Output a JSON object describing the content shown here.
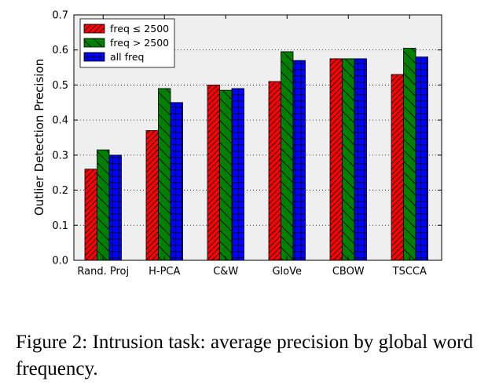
{
  "chart_data": {
    "type": "bar",
    "ylabel": "Outlier Detection Precision",
    "xlabel": "",
    "ylim": [
      0.0,
      0.7
    ],
    "yticks": [
      "0.0",
      "0.1",
      "0.2",
      "0.3",
      "0.4",
      "0.5",
      "0.6",
      "0.7"
    ],
    "grid": "horizontal dotted",
    "legend_position": "top-left",
    "categories": [
      "Rand. Proj",
      "H-PCA",
      "C&W",
      "GloVe",
      "CBOW",
      "TSCCA"
    ],
    "series": [
      {
        "name": "freq ≤ 2500",
        "color": "#ff0000",
        "hatch": "diagonal",
        "values": [
          0.26,
          0.37,
          0.5,
          0.51,
          0.575,
          0.53
        ]
      },
      {
        "name": "freq > 2500",
        "color": "#008000",
        "hatch": "backslash",
        "values": [
          0.315,
          0.49,
          0.485,
          0.595,
          0.575,
          0.605
        ]
      },
      {
        "name": "all freq",
        "color": "#0000ff",
        "hatch": "grid",
        "values": [
          0.3,
          0.45,
          0.49,
          0.57,
          0.575,
          0.58
        ]
      }
    ]
  },
  "caption": "Figure 2:  Intrusion task:  average precision by global word frequency."
}
